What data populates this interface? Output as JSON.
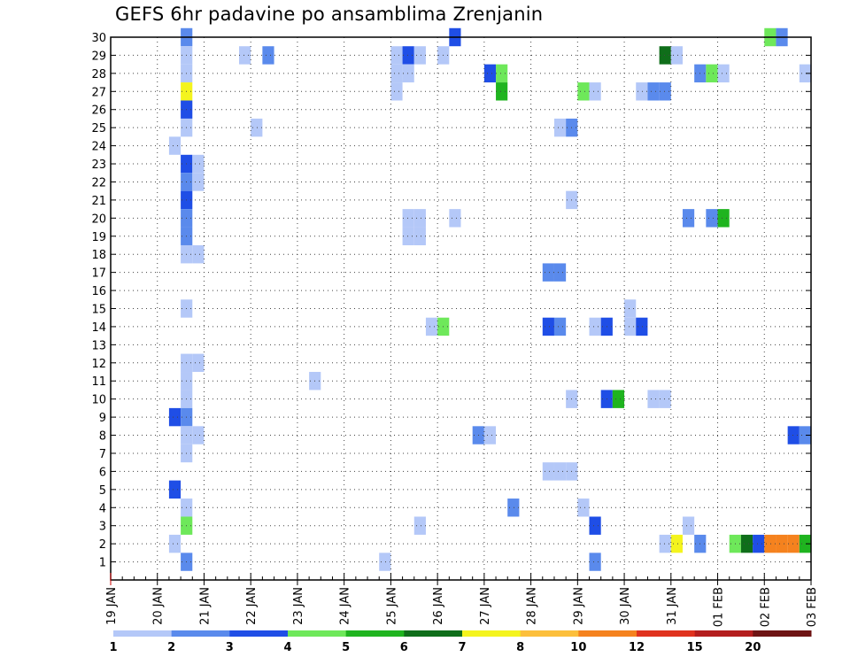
{
  "chart_data": {
    "type": "heatmap",
    "title": "GEFS 6hr padavine po ansamblima Zrenjanin",
    "x_tick_labels": [
      "19 JAN",
      "20 JAN",
      "21 JAN",
      "22 JAN",
      "23 JAN",
      "24 JAN",
      "25 JAN",
      "26 JAN",
      "27 JAN",
      "28 JAN",
      "29 JAN",
      "30 JAN",
      "31 JAN",
      "01 FEB",
      "02 FEB",
      "03 FEB"
    ],
    "x_range_days": [
      0,
      15
    ],
    "y_tick_labels": [
      "1",
      "2",
      "3",
      "4",
      "5",
      "6",
      "7",
      "8",
      "9",
      "10",
      "11",
      "12",
      "13",
      "14",
      "15",
      "16",
      "17",
      "18",
      "19",
      "20",
      "21",
      "22",
      "23",
      "24",
      "25",
      "26",
      "27",
      "28",
      "29",
      "30"
    ],
    "y_range": [
      0,
      30
    ],
    "grid": true,
    "colorbar": {
      "labels": [
        "1",
        "2",
        "3",
        "4",
        "5",
        "6",
        "7",
        "8",
        "10",
        "12",
        "15",
        "20"
      ],
      "colors": [
        "#b4c8f8",
        "#5a8aec",
        "#1f4ee6",
        "#6ee85a",
        "#1fb41f",
        "#0f6e1a",
        "#f4f41e",
        "#fcbf3c",
        "#f5821e",
        "#e0321e",
        "#b41e1e",
        "#6e1414"
      ]
    },
    "cells": [
      {
        "m": 30,
        "t": 1.5,
        "l": 2
      },
      {
        "m": 30,
        "t": 7.25,
        "l": 3
      },
      {
        "m": 30,
        "t": 14.0,
        "l": 4
      },
      {
        "m": 30,
        "t": 14.25,
        "l": 2
      },
      {
        "m": 29,
        "t": 1.5,
        "l": 1
      },
      {
        "m": 29,
        "t": 2.75,
        "l": 1
      },
      {
        "m": 29,
        "t": 3.25,
        "l": 2
      },
      {
        "m": 29,
        "t": 6.0,
        "l": 1
      },
      {
        "m": 29,
        "t": 6.25,
        "l": 3
      },
      {
        "m": 29,
        "t": 6.5,
        "l": 1
      },
      {
        "m": 29,
        "t": 7.0,
        "l": 1
      },
      {
        "m": 29,
        "t": 11.75,
        "l": 6
      },
      {
        "m": 29,
        "t": 12.0,
        "l": 1
      },
      {
        "m": 28,
        "t": 1.5,
        "l": 1
      },
      {
        "m": 28,
        "t": 6.0,
        "l": 1
      },
      {
        "m": 28,
        "t": 6.25,
        "l": 1
      },
      {
        "m": 28,
        "t": 8.0,
        "l": 3
      },
      {
        "m": 28,
        "t": 8.25,
        "l": 4
      },
      {
        "m": 28,
        "t": 12.5,
        "l": 2
      },
      {
        "m": 28,
        "t": 12.75,
        "l": 4
      },
      {
        "m": 28,
        "t": 13.0,
        "l": 1
      },
      {
        "m": 28,
        "t": 14.75,
        "l": 1
      },
      {
        "m": 27,
        "t": 1.5,
        "l": 7
      },
      {
        "m": 27,
        "t": 6.0,
        "l": 1
      },
      {
        "m": 27,
        "t": 8.25,
        "l": 5
      },
      {
        "m": 27,
        "t": 10.0,
        "l": 4
      },
      {
        "m": 27,
        "t": 10.25,
        "l": 1
      },
      {
        "m": 27,
        "t": 11.25,
        "l": 1
      },
      {
        "m": 27,
        "t": 11.5,
        "l": 2
      },
      {
        "m": 27,
        "t": 11.75,
        "l": 2
      },
      {
        "m": 26,
        "t": 1.5,
        "l": 3
      },
      {
        "m": 25,
        "t": 1.5,
        "l": 1
      },
      {
        "m": 25,
        "t": 3.0,
        "l": 1
      },
      {
        "m": 25,
        "t": 9.5,
        "l": 1
      },
      {
        "m": 25,
        "t": 9.75,
        "l": 2
      },
      {
        "m": 24,
        "t": 1.25,
        "l": 1
      },
      {
        "m": 23,
        "t": 1.5,
        "l": 3
      },
      {
        "m": 23,
        "t": 1.75,
        "l": 1
      },
      {
        "m": 22,
        "t": 1.5,
        "l": 2
      },
      {
        "m": 22,
        "t": 1.75,
        "l": 1
      },
      {
        "m": 21,
        "t": 1.5,
        "l": 3
      },
      {
        "m": 21,
        "t": 9.75,
        "l": 1
      },
      {
        "m": 20,
        "t": 1.5,
        "l": 2
      },
      {
        "m": 20,
        "t": 6.25,
        "l": 1
      },
      {
        "m": 20,
        "t": 6.5,
        "l": 1
      },
      {
        "m": 20,
        "t": 7.25,
        "l": 1
      },
      {
        "m": 20,
        "t": 12.25,
        "l": 2
      },
      {
        "m": 20,
        "t": 12.75,
        "l": 2
      },
      {
        "m": 20,
        "t": 13.0,
        "l": 5
      },
      {
        "m": 19,
        "t": 1.5,
        "l": 2
      },
      {
        "m": 19,
        "t": 6.25,
        "l": 1
      },
      {
        "m": 19,
        "t": 6.5,
        "l": 1
      },
      {
        "m": 18,
        "t": 1.5,
        "l": 1
      },
      {
        "m": 18,
        "t": 1.75,
        "l": 1
      },
      {
        "m": 17,
        "t": 9.25,
        "l": 2
      },
      {
        "m": 17,
        "t": 9.5,
        "l": 2
      },
      {
        "m": 15,
        "t": 1.5,
        "l": 1
      },
      {
        "m": 15,
        "t": 11.0,
        "l": 1
      },
      {
        "m": 14,
        "t": 6.75,
        "l": 1
      },
      {
        "m": 14,
        "t": 7.0,
        "l": 4
      },
      {
        "m": 14,
        "t": 9.25,
        "l": 3
      },
      {
        "m": 14,
        "t": 9.5,
        "l": 2
      },
      {
        "m": 14,
        "t": 10.25,
        "l": 1
      },
      {
        "m": 14,
        "t": 10.5,
        "l": 3
      },
      {
        "m": 14,
        "t": 11.0,
        "l": 1
      },
      {
        "m": 14,
        "t": 11.25,
        "l": 3
      },
      {
        "m": 12,
        "t": 1.5,
        "l": 1
      },
      {
        "m": 12,
        "t": 1.75,
        "l": 1
      },
      {
        "m": 11,
        "t": 1.5,
        "l": 1
      },
      {
        "m": 11,
        "t": 4.25,
        "l": 1
      },
      {
        "m": 10,
        "t": 1.5,
        "l": 1
      },
      {
        "m": 10,
        "t": 9.75,
        "l": 1
      },
      {
        "m": 10,
        "t": 10.5,
        "l": 3
      },
      {
        "m": 10,
        "t": 10.75,
        "l": 5
      },
      {
        "m": 10,
        "t": 11.5,
        "l": 1
      },
      {
        "m": 10,
        "t": 11.75,
        "l": 1
      },
      {
        "m": 9,
        "t": 1.25,
        "l": 3
      },
      {
        "m": 9,
        "t": 1.5,
        "l": 2
      },
      {
        "m": 8,
        "t": 1.5,
        "l": 1
      },
      {
        "m": 8,
        "t": 1.75,
        "l": 1
      },
      {
        "m": 8,
        "t": 7.75,
        "l": 2
      },
      {
        "m": 8,
        "t": 8.0,
        "l": 1
      },
      {
        "m": 8,
        "t": 14.5,
        "l": 3
      },
      {
        "m": 8,
        "t": 14.75,
        "l": 2
      },
      {
        "m": 7,
        "t": 1.5,
        "l": 1
      },
      {
        "m": 6,
        "t": 9.25,
        "l": 1
      },
      {
        "m": 6,
        "t": 9.5,
        "l": 1
      },
      {
        "m": 6,
        "t": 9.75,
        "l": 1
      },
      {
        "m": 5,
        "t": 1.25,
        "l": 3
      },
      {
        "m": 4,
        "t": 1.5,
        "l": 1
      },
      {
        "m": 4,
        "t": 8.5,
        "l": 2
      },
      {
        "m": 4,
        "t": 10.0,
        "l": 1
      },
      {
        "m": 3,
        "t": 1.5,
        "l": 4
      },
      {
        "m": 3,
        "t": 6.5,
        "l": 1
      },
      {
        "m": 3,
        "t": 10.25,
        "l": 3
      },
      {
        "m": 3,
        "t": 12.25,
        "l": 1
      },
      {
        "m": 2,
        "t": 1.25,
        "l": 1
      },
      {
        "m": 2,
        "t": 11.75,
        "l": 1
      },
      {
        "m": 2,
        "t": 12.0,
        "l": 7
      },
      {
        "m": 2,
        "t": 12.5,
        "l": 2
      },
      {
        "m": 2,
        "t": 13.25,
        "l": 4
      },
      {
        "m": 2,
        "t": 13.5,
        "l": 6
      },
      {
        "m": 2,
        "t": 13.75,
        "l": 3
      },
      {
        "m": 2,
        "t": 14.0,
        "l": 9
      },
      {
        "m": 2,
        "t": 14.25,
        "l": 9
      },
      {
        "m": 2,
        "t": 14.5,
        "l": 9
      },
      {
        "m": 2,
        "t": 14.75,
        "l": 5
      },
      {
        "m": 1,
        "t": 1.5,
        "l": 2
      },
      {
        "m": 1,
        "t": 5.75,
        "l": 1
      },
      {
        "m": 1,
        "t": 10.25,
        "l": 2
      }
    ]
  }
}
